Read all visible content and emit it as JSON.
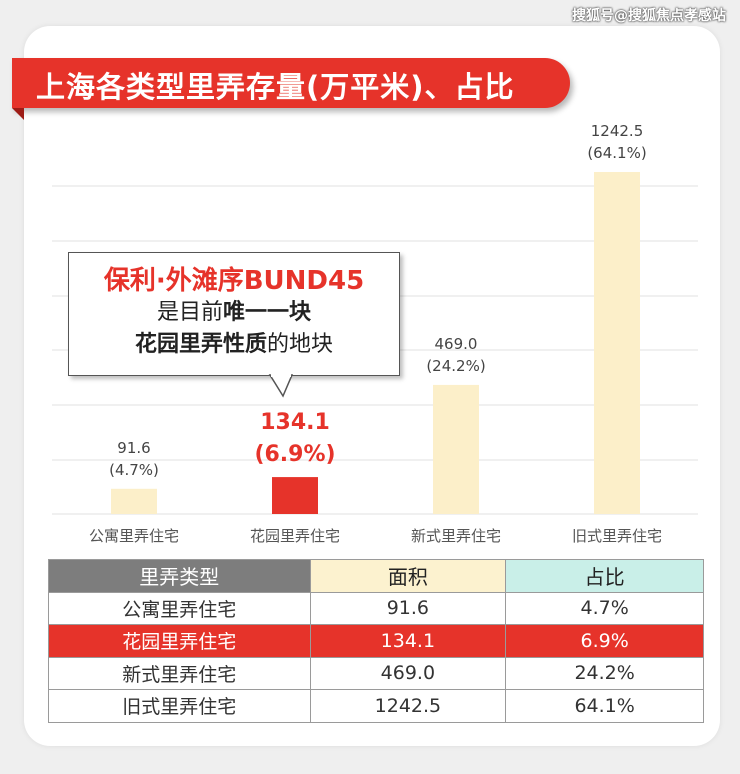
{
  "watermark": "搜狐号@搜狐焦点孝感站",
  "title": "上海各类型里弄存量(万平米)、占比",
  "callout": {
    "line1": "保利·外滩序BUND45",
    "line2_pre": "是目前",
    "line2_bold": "唯一一块",
    "line3_bold": "花园里弄性质",
    "line3_post": "的地块"
  },
  "colors": {
    "accent_red": "#e6332a",
    "bar_default": "#fcefc9",
    "header_gray": "#7d7d7d",
    "header_yellow": "#fcf2cf",
    "header_teal": "#c9efe8"
  },
  "chart_data": {
    "type": "bar",
    "categories": [
      "公寓里弄住宅",
      "花园里弄住宅",
      "新式里弄住宅",
      "旧式里弄住宅"
    ],
    "values": [
      91.6,
      134.1,
      469.0,
      1242.5
    ],
    "value_labels": [
      "91.6",
      "134.1",
      "469.0",
      "1242.5"
    ],
    "percent_labels": [
      "(4.7%)",
      "(6.9%)",
      "(24.2%)",
      "(64.1%)"
    ],
    "highlight_index": 1,
    "ylim": [
      0,
      1400
    ],
    "grid": true,
    "title": "上海各类型里弄存量(万平米)、占比"
  },
  "table": {
    "headers": [
      "里弄类型",
      "面积",
      "占比"
    ],
    "rows": [
      {
        "type": "公寓里弄住宅",
        "area": "91.6",
        "share": "4.7%"
      },
      {
        "type": "花园里弄住宅",
        "area": "134.1",
        "share": "6.9%"
      },
      {
        "type": "新式里弄住宅",
        "area": "469.0",
        "share": "24.2%"
      },
      {
        "type": "旧式里弄住宅",
        "area": "1242.5",
        "share": "64.1%"
      }
    ]
  }
}
